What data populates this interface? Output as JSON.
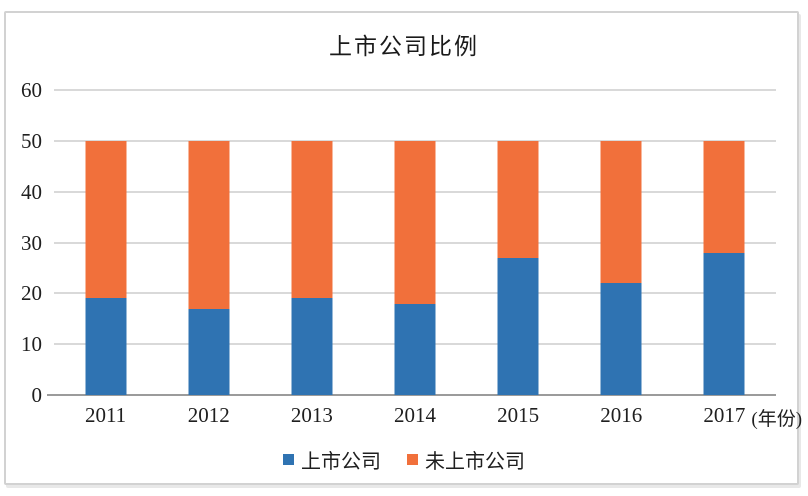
{
  "title": "上市公司比例",
  "colors": {
    "listed_blue": "#2f73b2",
    "unlisted_orange": "#f1703b",
    "gridline": "#d9d9d9",
    "zero_axis": "#9b9b9b",
    "frame_border": "#d2d2d2",
    "text": "#1f1f1f"
  },
  "legend": {
    "items": [
      {
        "label": "上市公司",
        "color": "#2f73b2"
      },
      {
        "label": "未上市公司",
        "color": "#f1703b"
      }
    ]
  },
  "chart_data": {
    "type": "bar",
    "stacked": true,
    "title": "上市公司比例",
    "categories": [
      "2011",
      "2012",
      "2013",
      "2014",
      "2015",
      "2016",
      "2017"
    ],
    "series": [
      {
        "name": "上市公司",
        "color": "#2f73b2",
        "values": [
          19,
          17,
          19,
          18,
          27,
          22,
          28
        ]
      },
      {
        "name": "未上市公司",
        "color": "#f1703b",
        "values": [
          31,
          33,
          31,
          32,
          23,
          28,
          22
        ]
      }
    ],
    "stack_totals": [
      50,
      50,
      50,
      50,
      50,
      50,
      50
    ],
    "ylim": [
      0,
      60
    ],
    "y_ticks": [
      0,
      10,
      20,
      30,
      40,
      50,
      60
    ],
    "x_axis_suffix": "(年份)",
    "grid": true,
    "legend_position": "bottom"
  }
}
